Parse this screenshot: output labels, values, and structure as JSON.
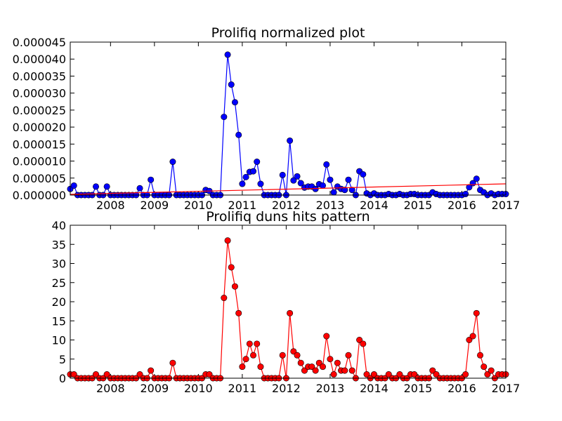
{
  "chart_data": [
    {
      "type": "line",
      "title": "Prolifiq normalized plot",
      "xlabel": "",
      "ylabel": "",
      "xlim": [
        2007.083,
        2017.0
      ],
      "ylim": [
        0,
        4.5e-05
      ],
      "grid": false,
      "x_ticks": [
        "2008",
        "2009",
        "2010",
        "2011",
        "2012",
        "2013",
        "2014",
        "2015",
        "2016",
        "2017"
      ],
      "y_ticks": [
        "0.000000",
        "0.000005",
        "0.000010",
        "0.000015",
        "0.000020",
        "0.000025",
        "0.000030",
        "0.000035",
        "0.000040",
        "0.000045"
      ],
      "series": [
        {
          "color": "#0000ff",
          "marker": "circle",
          "x": [
            2007.083,
            2007.167,
            2007.25,
            2007.333,
            2007.417,
            2007.5,
            2007.583,
            2007.667,
            2007.75,
            2007.833,
            2007.917,
            2008.0,
            2008.083,
            2008.167,
            2008.25,
            2008.333,
            2008.417,
            2008.5,
            2008.583,
            2008.667,
            2008.75,
            2008.833,
            2008.917,
            2009.0,
            2009.083,
            2009.167,
            2009.25,
            2009.333,
            2009.417,
            2009.5,
            2009.583,
            2009.667,
            2009.75,
            2009.833,
            2009.917,
            2010.0,
            2010.083,
            2010.167,
            2010.25,
            2010.333,
            2010.417,
            2010.5,
            2010.583,
            2010.667,
            2010.75,
            2010.833,
            2010.917,
            2011.0,
            2011.083,
            2011.167,
            2011.25,
            2011.333,
            2011.417,
            2011.5,
            2011.583,
            2011.667,
            2011.75,
            2011.833,
            2011.917,
            2012.0,
            2012.083,
            2012.167,
            2012.25,
            2012.333,
            2012.417,
            2012.5,
            2012.583,
            2012.667,
            2012.75,
            2012.833,
            2012.917,
            2013.0,
            2013.083,
            2013.167,
            2013.25,
            2013.333,
            2013.417,
            2013.5,
            2013.583,
            2013.667,
            2013.75,
            2013.833,
            2013.917,
            2014.0,
            2014.083,
            2014.167,
            2014.25,
            2014.333,
            2014.417,
            2014.5,
            2014.583,
            2014.667,
            2014.75,
            2014.833,
            2014.917,
            2015.0,
            2015.083,
            2015.167,
            2015.25,
            2015.333,
            2015.417,
            2015.5,
            2015.583,
            2015.667,
            2015.75,
            2015.833,
            2015.917,
            2016.0,
            2016.083,
            2016.167,
            2016.25,
            2016.333,
            2016.417,
            2016.5,
            2016.583,
            2016.667,
            2016.75,
            2016.833,
            2016.917,
            2017.0
          ],
          "y": [
            1.8e-06,
            2.8e-06,
            0,
            0,
            0,
            0,
            0,
            2.5e-06,
            0,
            0,
            2.5e-06,
            0,
            0,
            0,
            0,
            0,
            0,
            0,
            0,
            2e-06,
            0,
            0,
            4.5e-06,
            0,
            0,
            0,
            0,
            0,
            9.8e-06,
            0,
            0,
            0,
            0,
            0,
            0,
            0,
            0,
            1.5e-06,
            1.2e-06,
            0,
            0,
            0,
            2.3e-05,
            4.13e-05,
            3.25e-05,
            2.73e-05,
            1.77e-05,
            3.3e-06,
            5.3e-06,
            6.8e-06,
            7e-06,
            9.8e-06,
            3.3e-06,
            0,
            0,
            0,
            0,
            0,
            5.9e-06,
            0,
            1.6e-05,
            4.3e-06,
            5.5e-06,
            3.5e-06,
            2.2e-06,
            2.5e-06,
            2.5e-06,
            1.8e-06,
            3.2e-06,
            2.8e-06,
            9e-06,
            4.5e-06,
            8e-07,
            2.5e-06,
            1.8e-06,
            1.5e-06,
            4.5e-06,
            1.5e-06,
            0,
            7e-06,
            6.1e-06,
            5e-07,
            0,
            5e-07,
            0,
            0,
            0,
            3e-07,
            0,
            0,
            3e-07,
            0,
            0,
            3e-07,
            3e-07,
            0,
            0,
            0,
            0,
            8e-07,
            3e-07,
            0,
            0,
            0,
            0,
            0,
            0,
            0,
            3e-07,
            2.3e-06,
            3.5e-06,
            4.8e-06,
            1.5e-06,
            8e-07,
            0,
            5e-07,
            0,
            3e-07,
            3e-07,
            3e-07
          ]
        },
        {
          "color": "#ff0000",
          "marker": "none",
          "x": [
            2007.083,
            2017.0
          ],
          "y": [
            2e-07,
            3.3e-06
          ]
        }
      ]
    },
    {
      "type": "line",
      "title": "Prolifiq duns hits pattern",
      "xlabel": "",
      "ylabel": "",
      "xlim": [
        2007.083,
        2017.0
      ],
      "ylim": [
        0,
        40
      ],
      "grid": false,
      "x_ticks": [
        "2008",
        "2009",
        "2010",
        "2011",
        "2012",
        "2013",
        "2014",
        "2015",
        "2016",
        "2017"
      ],
      "y_ticks": [
        "0",
        "5",
        "10",
        "15",
        "20",
        "25",
        "30",
        "35",
        "40"
      ],
      "series": [
        {
          "color": "#ff0000",
          "marker": "circle",
          "x": [
            2007.083,
            2007.167,
            2007.25,
            2007.333,
            2007.417,
            2007.5,
            2007.583,
            2007.667,
            2007.75,
            2007.833,
            2007.917,
            2008.0,
            2008.083,
            2008.167,
            2008.25,
            2008.333,
            2008.417,
            2008.5,
            2008.583,
            2008.667,
            2008.75,
            2008.833,
            2008.917,
            2009.0,
            2009.083,
            2009.167,
            2009.25,
            2009.333,
            2009.417,
            2009.5,
            2009.583,
            2009.667,
            2009.75,
            2009.833,
            2009.917,
            2010.0,
            2010.083,
            2010.167,
            2010.25,
            2010.333,
            2010.417,
            2010.5,
            2010.583,
            2010.667,
            2010.75,
            2010.833,
            2010.917,
            2011.0,
            2011.083,
            2011.167,
            2011.25,
            2011.333,
            2011.417,
            2011.5,
            2011.583,
            2011.667,
            2011.75,
            2011.833,
            2011.917,
            2012.0,
            2012.083,
            2012.167,
            2012.25,
            2012.333,
            2012.417,
            2012.5,
            2012.583,
            2012.667,
            2012.75,
            2012.833,
            2012.917,
            2013.0,
            2013.083,
            2013.167,
            2013.25,
            2013.333,
            2013.417,
            2013.5,
            2013.583,
            2013.667,
            2013.75,
            2013.833,
            2013.917,
            2014.0,
            2014.083,
            2014.167,
            2014.25,
            2014.333,
            2014.417,
            2014.5,
            2014.583,
            2014.667,
            2014.75,
            2014.833,
            2014.917,
            2015.0,
            2015.083,
            2015.167,
            2015.25,
            2015.333,
            2015.417,
            2015.5,
            2015.583,
            2015.667,
            2015.75,
            2015.833,
            2015.917,
            2016.0,
            2016.083,
            2016.167,
            2016.25,
            2016.333,
            2016.417,
            2016.5,
            2016.583,
            2016.667,
            2016.75,
            2016.833,
            2016.917,
            2017.0
          ],
          "y": [
            1,
            1,
            0,
            0,
            0,
            0,
            0,
            1,
            0,
            0,
            1,
            0,
            0,
            0,
            0,
            0,
            0,
            0,
            0,
            1,
            0,
            0,
            2,
            0,
            0,
            0,
            0,
            0,
            4,
            0,
            0,
            0,
            0,
            0,
            0,
            0,
            0,
            1,
            1,
            0,
            0,
            0,
            21,
            36,
            29,
            24,
            17,
            3,
            5,
            9,
            6,
            9,
            3,
            0,
            0,
            0,
            0,
            0,
            6,
            0,
            17,
            7,
            6,
            4,
            2,
            3,
            3,
            2,
            4,
            3,
            11,
            5,
            1,
            4,
            2,
            2,
            6,
            2,
            0,
            10,
            9,
            1,
            0,
            1,
            0,
            0,
            0,
            1,
            0,
            0,
            1,
            0,
            0,
            1,
            1,
            0,
            0,
            0,
            0,
            2,
            1,
            0,
            0,
            0,
            0,
            0,
            0,
            0,
            1,
            10,
            11,
            17,
            6,
            3,
            1,
            2,
            0,
            1,
            1,
            1
          ]
        }
      ]
    }
  ]
}
